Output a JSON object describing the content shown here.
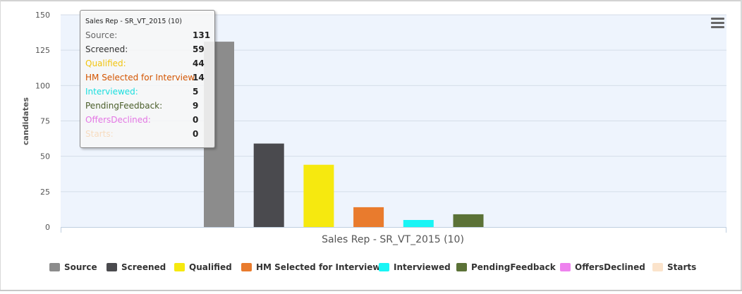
{
  "chart_data": {
    "type": "bar",
    "categories": [
      "Sales Rep - SR_VT_2015 (10)"
    ],
    "xlabel": "Sales Rep - SR_VT_2015 (10)",
    "ylabel": "candidates",
    "ylim": [
      0,
      150
    ],
    "yticks": [
      0,
      25,
      50,
      75,
      100,
      125,
      150
    ],
    "grid": true,
    "legend_position": "bottom",
    "series": [
      {
        "name": "Source",
        "values": [
          131
        ],
        "color": "#8c8c8c"
      },
      {
        "name": "Screened",
        "values": [
          59
        ],
        "color": "#4a4a4e"
      },
      {
        "name": "Qualified",
        "values": [
          44
        ],
        "color": "#f6e90f"
      },
      {
        "name": "HM Selected for Interview",
        "values": [
          14
        ],
        "color": "#e97b2d"
      },
      {
        "name": "Interviewed",
        "values": [
          5
        ],
        "color": "#19f5f5"
      },
      {
        "name": "PendingFeedback",
        "values": [
          9
        ],
        "color": "#5b7237"
      },
      {
        "name": "OffersDeclined",
        "values": [
          0
        ],
        "color": "#ee82ee"
      },
      {
        "name": "Starts",
        "values": [
          0
        ],
        "color": "#fbe3cb"
      }
    ]
  },
  "tooltip": {
    "title": "Sales Rep - SR_VT_2015 (10)",
    "rows": [
      {
        "label": "Source:",
        "value": "131",
        "color": "#666666"
      },
      {
        "label": "Screened:",
        "value": "59",
        "color": "#333333"
      },
      {
        "label": "Qualified:",
        "value": "44",
        "color": "#f1c40f"
      },
      {
        "label": "HM Selected for Interview:",
        "value": "14",
        "color": "#d35400"
      },
      {
        "label": "Interviewed:",
        "value": "5",
        "color": "#19dede"
      },
      {
        "label": "PendingFeedback:",
        "value": "9",
        "color": "#4a5e2a"
      },
      {
        "label": "OffersDeclined:",
        "value": "0",
        "color": "#e476e4"
      },
      {
        "label": "Starts:",
        "value": "0",
        "color": "#f7dcc0"
      }
    ]
  },
  "legend": {
    "items": [
      "Source",
      "Screened",
      "Qualified",
      "HM Selected for Interview",
      "Interviewed",
      "PendingFeedback",
      "OffersDeclined",
      "Starts"
    ]
  },
  "icons": {
    "menu": "hamburger-menu-icon"
  }
}
